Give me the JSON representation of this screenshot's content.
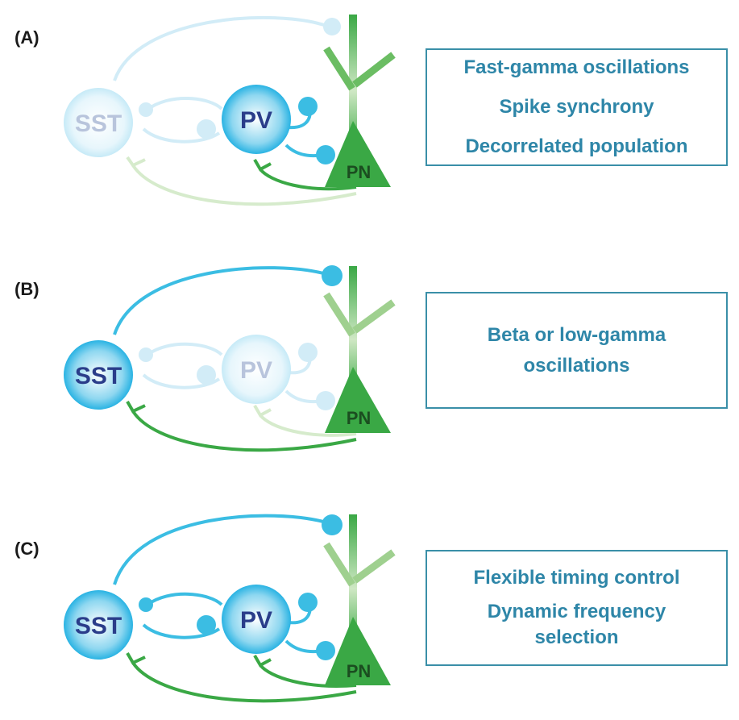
{
  "panels": [
    {
      "label": "(A)",
      "cells": {
        "sst": "SST",
        "pv": "PV",
        "pn": "PN"
      },
      "lines": [
        "Fast-gamma oscillations",
        "Spike synchrony",
        "Decorrelated population"
      ]
    },
    {
      "label": "(B)",
      "cells": {
        "sst": "SST",
        "pv": "PV",
        "pn": "PN"
      },
      "lines": [
        "Beta or low-gamma",
        "oscillations"
      ]
    },
    {
      "label": "(C)",
      "cells": {
        "sst": "SST",
        "pv": "PV",
        "pn": "PN"
      },
      "lines": [
        "Flexible timing control",
        "Dynamic frequency",
        "selection"
      ]
    }
  ],
  "colors": {
    "inhibitory": "#3bbde3",
    "excitatory": "#3aa845",
    "cell_text": "#2a3d8a",
    "faded_text": "#b8c4dc",
    "box_border": "#3a8fa8",
    "box_text": "#2e86a8"
  }
}
